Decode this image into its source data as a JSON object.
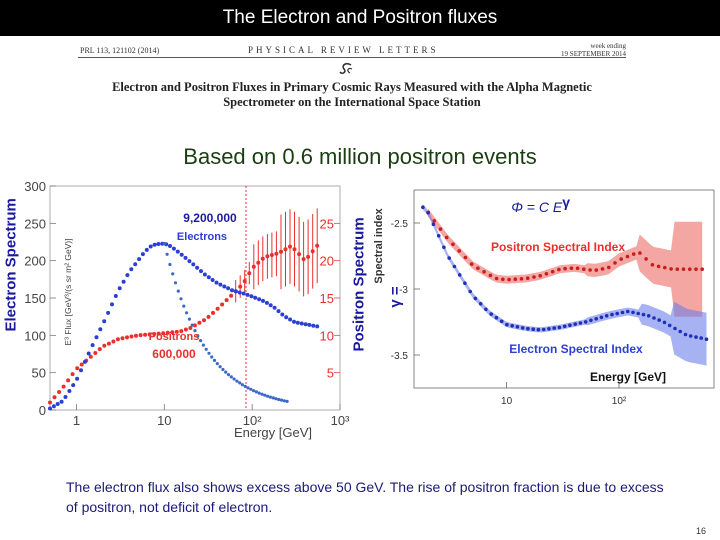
{
  "slide_title": "The Electron and Positron fluxes",
  "paper": {
    "citation": "PRL 113, 121102 (2014)",
    "journal": "PHYSICAL REVIEW LETTERS",
    "week_line1": "week ending",
    "week_line2": "19 SEPTEMBER 2014",
    "title_line1": "Electron and Positron Fluxes in Primary Cosmic Rays Measured with the Alpha Magnetic",
    "title_line2": "Spectrometer on the International Space Station"
  },
  "subtitle": "Based on 0.6 million positron events",
  "left_chart": {
    "side_label_left": "Electron Spectrum",
    "side_label_right": "Positron Spectrum",
    "y_left_ticks": [
      "300",
      "250",
      "200",
      "150",
      "100",
      "50",
      "0"
    ],
    "y_right_ticks": [
      "25",
      "20",
      "15",
      "10",
      "5"
    ],
    "x_ticks": [
      "1",
      "10",
      "10²",
      "10³"
    ],
    "xlabel": "Energy [GeV]",
    "ylabel": "E³ Flux [GeV³/(s sr m² GeV)]",
    "count_electrons": "9,200,000",
    "label_electrons": "Electrons",
    "label_positrons": "Positrons",
    "count_positrons": "600,000"
  },
  "right_chart": {
    "formula": "Φ = C E^γ",
    "gamma_label": "γ =",
    "ylabel": "Spectral index",
    "y_ticks": [
      "-2.5",
      "-3",
      "-3.5"
    ],
    "x_ticks": [
      "10",
      "10²"
    ],
    "label_positron": "Positron Spectral Index",
    "label_electron": "Electron Spectral Index",
    "xlabel": "Energy [GeV]"
  },
  "body_text": "The electron flux also shows excess above 50 GeV. The rise of positron fraction is due to excess of positron, not deficit of electron.",
  "page_number": "16",
  "colors": {
    "electron": "#2b3fd6",
    "positron": "#e8302c",
    "accent": "#1a1aa0"
  }
}
